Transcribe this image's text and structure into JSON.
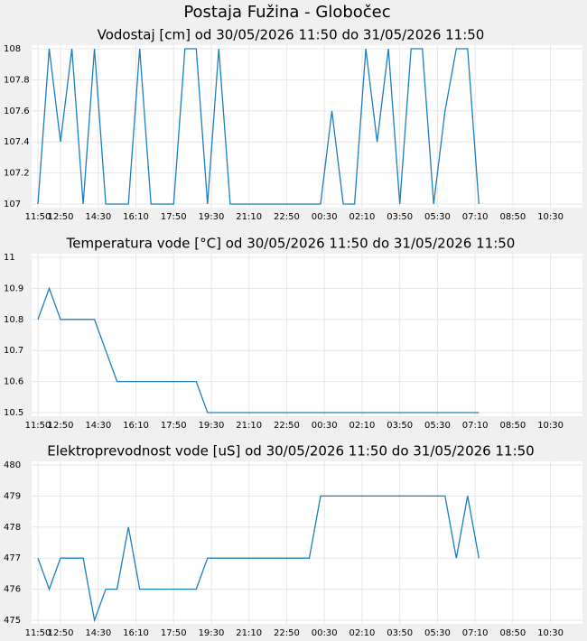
{
  "page_title": "Postaja Fužina - Globočec",
  "chart_data": [
    {
      "type": "line",
      "title": "Vodostaj [cm] od 30/05/2026 11:50 do 31/05/2026 11:50",
      "x": [
        "11:50",
        "12:20",
        "12:50",
        "13:20",
        "13:50",
        "14:20",
        "14:50",
        "15:20",
        "15:50",
        "16:20",
        "16:50",
        "17:20",
        "17:50",
        "18:20",
        "18:50",
        "19:20",
        "19:50",
        "20:20",
        "20:50",
        "21:20",
        "21:50",
        "22:20",
        "22:50",
        "23:20",
        "23:50",
        "00:20",
        "00:50",
        "01:20",
        "01:50",
        "02:20",
        "02:50",
        "03:20",
        "03:50",
        "04:20",
        "04:50",
        "05:20",
        "05:50",
        "06:20",
        "06:50",
        "07:20"
      ],
      "series": [
        {
          "color": "#1a7fc0",
          "values": [
            107,
            108,
            107.4,
            108,
            107,
            108,
            107,
            107,
            107,
            108,
            107,
            107,
            107,
            108,
            108,
            107,
            108,
            107,
            107,
            107,
            107,
            107,
            107,
            107,
            107,
            107,
            107.6,
            107,
            107,
            108,
            107.4,
            108,
            107,
            108,
            108,
            107,
            107.6,
            108,
            108,
            107
          ]
        }
      ],
      "xlim": [
        "11:50",
        "11:50"
      ],
      "xticks": [
        "12:50",
        "14:30",
        "16:10",
        "17:50",
        "19:30",
        "21:10",
        "22:50",
        "00:30",
        "02:10",
        "03:50",
        "05:30",
        "07:10",
        "08:50",
        "10:30",
        "11:50"
      ],
      "ylim": [
        107,
        108
      ],
      "yticks": [
        107,
        107.2,
        107.4,
        107.6,
        107.8,
        108
      ],
      "grid": true
    },
    {
      "type": "line",
      "title": "Temperatura vode [°C] od 30/05/2026 11:50 do 31/05/2026 11:50",
      "x": [
        "11:50",
        "12:20",
        "12:50",
        "13:20",
        "13:50",
        "14:20",
        "14:50",
        "15:20",
        "15:50",
        "16:20",
        "16:50",
        "17:20",
        "17:50",
        "18:20",
        "18:50",
        "19:20",
        "19:50",
        "20:20",
        "20:50",
        "21:20",
        "21:50",
        "22:20",
        "22:50",
        "23:20",
        "23:50",
        "00:20",
        "00:50",
        "01:20",
        "01:50",
        "02:20",
        "02:50",
        "03:20",
        "03:50",
        "04:20",
        "04:50",
        "05:20",
        "05:50",
        "06:20",
        "06:50",
        "07:20"
      ],
      "series": [
        {
          "color": "#1a7fc0",
          "values": [
            10.8,
            10.9,
            10.8,
            10.8,
            10.8,
            10.8,
            10.7,
            10.6,
            10.6,
            10.6,
            10.6,
            10.6,
            10.6,
            10.6,
            10.6,
            10.5,
            10.5,
            10.5,
            10.5,
            10.5,
            10.5,
            10.5,
            10.5,
            10.5,
            10.5,
            10.5,
            10.5,
            10.5,
            10.5,
            10.5,
            10.5,
            10.5,
            10.5,
            10.5,
            10.5,
            10.5,
            10.5,
            10.5,
            10.5,
            10.5
          ]
        }
      ],
      "xlim": [
        "11:50",
        "11:50"
      ],
      "xticks": [
        "12:50",
        "14:30",
        "16:10",
        "17:50",
        "19:30",
        "21:10",
        "22:50",
        "00:30",
        "02:10",
        "03:50",
        "05:30",
        "07:10",
        "08:50",
        "10:30",
        "11:50"
      ],
      "ylim": [
        10.5,
        11
      ],
      "yticks": [
        10.5,
        10.6,
        10.7,
        10.8,
        10.9,
        11
      ],
      "grid": true
    },
    {
      "type": "line",
      "title": "Elektroprevodnost vode [uS] od 30/05/2026 11:50 do 31/05/2026 11:50",
      "x": [
        "11:50",
        "12:20",
        "12:50",
        "13:20",
        "13:50",
        "14:20",
        "14:50",
        "15:20",
        "15:50",
        "16:20",
        "16:50",
        "17:20",
        "17:50",
        "18:20",
        "18:50",
        "19:20",
        "19:50",
        "20:20",
        "20:50",
        "21:20",
        "21:50",
        "22:20",
        "22:50",
        "23:20",
        "23:50",
        "00:20",
        "00:50",
        "01:20",
        "01:50",
        "02:20",
        "02:50",
        "03:20",
        "03:50",
        "04:20",
        "04:50",
        "05:20",
        "05:50",
        "06:20",
        "06:50",
        "07:20"
      ],
      "series": [
        {
          "color": "#1a7fc0",
          "values": [
            477,
            476,
            477,
            477,
            477,
            475,
            476,
            476,
            478,
            476,
            476,
            476,
            476,
            476,
            476,
            477,
            477,
            477,
            477,
            477,
            477,
            477,
            477,
            477,
            477,
            479,
            479,
            479,
            479,
            479,
            479,
            479,
            479,
            479,
            479,
            479,
            479,
            477,
            479,
            477
          ]
        }
      ],
      "xlim": [
        "11:50",
        "11:50"
      ],
      "xticks": [
        "12:50",
        "14:30",
        "16:10",
        "17:50",
        "19:30",
        "21:10",
        "22:50",
        "00:30",
        "02:10",
        "03:50",
        "05:30",
        "07:10",
        "08:50",
        "10:30",
        "11:50"
      ],
      "ylim": [
        475,
        480
      ],
      "yticks": [
        475,
        476,
        477,
        478,
        479,
        480
      ],
      "grid": true
    }
  ]
}
